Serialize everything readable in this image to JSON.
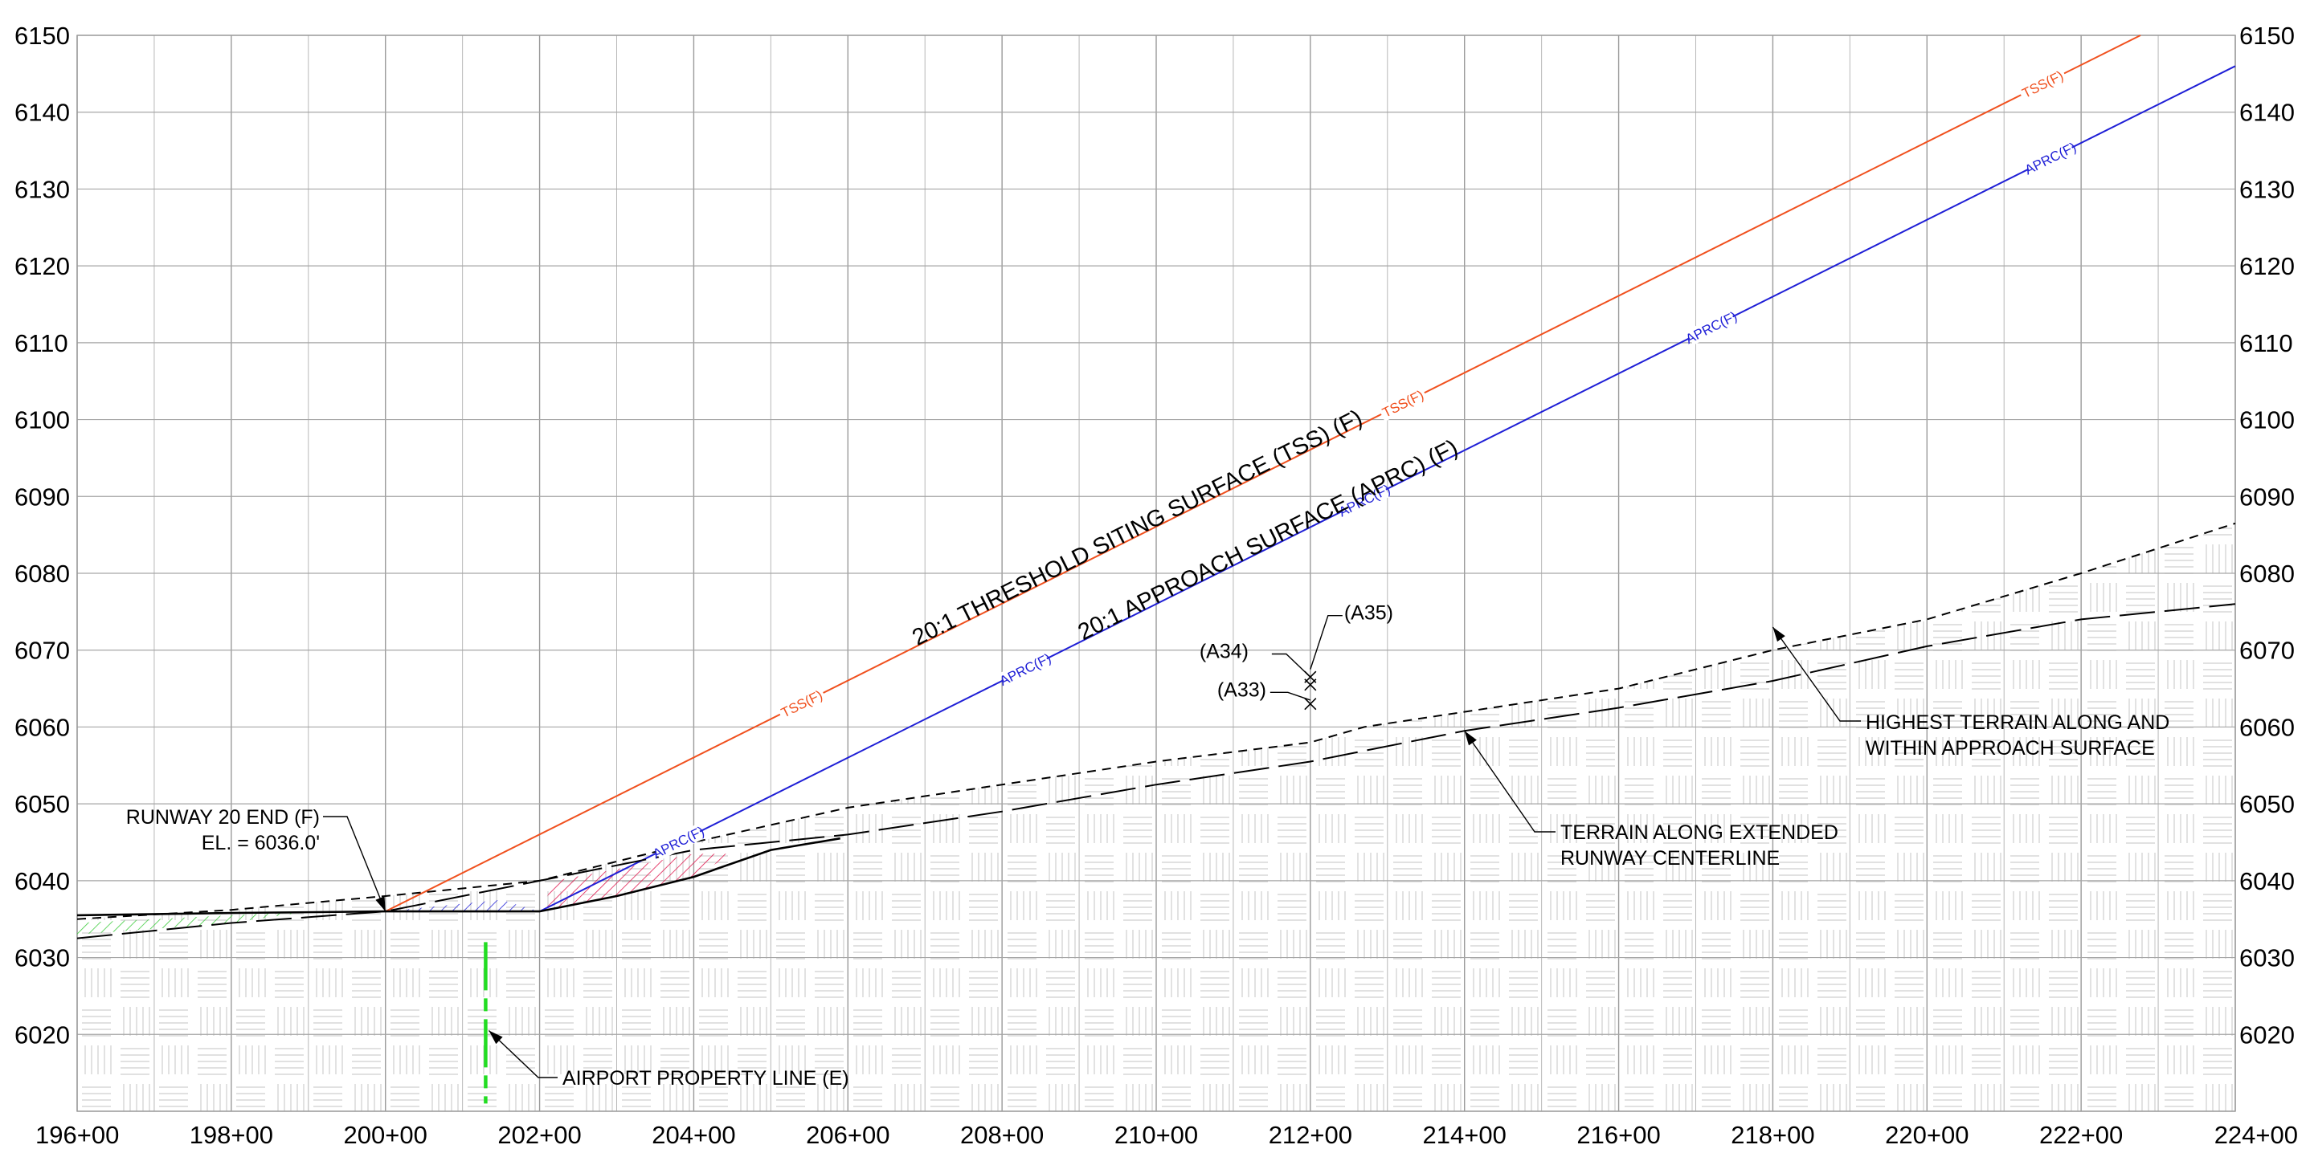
{
  "chart_data": {
    "type": "profile",
    "x_axis": {
      "unit": "station",
      "range": [
        19600,
        22400
      ],
      "ticks": [
        {
          "value": 19600,
          "label": "196+00"
        },
        {
          "value": 19800,
          "label": "198+00"
        },
        {
          "value": 20000,
          "label": "200+00"
        },
        {
          "value": 20200,
          "label": "202+00"
        },
        {
          "value": 20400,
          "label": "204+00"
        },
        {
          "value": 20600,
          "label": "206+00"
        },
        {
          "value": 20800,
          "label": "208+00"
        },
        {
          "value": 21000,
          "label": "210+00"
        },
        {
          "value": 21200,
          "label": "212+00"
        },
        {
          "value": 21400,
          "label": "214+00"
        },
        {
          "value": 21600,
          "label": "216+00"
        },
        {
          "value": 21800,
          "label": "218+00"
        },
        {
          "value": 22000,
          "label": "220+00"
        },
        {
          "value": 22200,
          "label": "222+00"
        },
        {
          "value": 22400,
          "label": "224+00"
        }
      ]
    },
    "y_axis": {
      "unit": "elevation ft",
      "range": [
        6010,
        6150
      ],
      "ticks": [
        {
          "value": 6020,
          "label": "6020"
        },
        {
          "value": 6030,
          "label": "6030"
        },
        {
          "value": 6040,
          "label": "6040"
        },
        {
          "value": 6050,
          "label": "6050"
        },
        {
          "value": 6060,
          "label": "6060"
        },
        {
          "value": 6070,
          "label": "6070"
        },
        {
          "value": 6080,
          "label": "6080"
        },
        {
          "value": 6090,
          "label": "6090"
        },
        {
          "value": 6100,
          "label": "6100"
        },
        {
          "value": 6110,
          "label": "6110"
        },
        {
          "value": 6120,
          "label": "6120"
        },
        {
          "value": 6130,
          "label": "6130"
        },
        {
          "value": 6140,
          "label": "6140"
        },
        {
          "value": 6150,
          "label": "6150"
        }
      ]
    },
    "grid": true,
    "series": [
      {
        "key": "tss",
        "name": "20:1 THRESHOLD SITING SURFACE  (TSS) (F)",
        "tag": "TSS(F)",
        "color": "#f0501e",
        "style": "solid",
        "points": [
          [
            20000,
            6036.0
          ],
          [
            22277,
            6150.0
          ]
        ],
        "tag_stations": [
          20540,
          21320,
          22150
        ]
      },
      {
        "key": "aprc",
        "name": "20:1 APPROACH SURFACE  (APRC) (F)",
        "tag": "APRC(F)",
        "color": "#1f1fd6",
        "style": "solid",
        "points": [
          [
            20200,
            6036.0
          ],
          [
            22400,
            6146.0
          ]
        ],
        "tag_stations": [
          20380,
          20830,
          21270,
          21720,
          22160
        ]
      },
      {
        "key": "highest-terrain",
        "name": "HIGHEST TERRAIN ALONG AND WITHIN APPROACH SURFACE",
        "color": "#000000",
        "style": "short-dash",
        "points": [
          [
            19600,
            6035.0
          ],
          [
            19800,
            6036.2
          ],
          [
            20000,
            6038.0
          ],
          [
            20200,
            6040.0
          ],
          [
            20400,
            6045.0
          ],
          [
            20600,
            6049.5
          ],
          [
            20800,
            6052.5
          ],
          [
            21000,
            6055.5
          ],
          [
            21200,
            6058.0
          ],
          [
            21270,
            6060.0
          ],
          [
            21600,
            6065.0
          ],
          [
            21800,
            6070.0
          ],
          [
            22000,
            6074.0
          ],
          [
            22200,
            6080.0
          ],
          [
            22400,
            6086.5
          ]
        ]
      },
      {
        "key": "centerline-terrain",
        "name": "TERRAIN ALONG EXTENDED RUNWAY CENTERLINE",
        "color": "#000000",
        "style": "long-dash",
        "points": [
          [
            19600,
            6032.5
          ],
          [
            19800,
            6034.5
          ],
          [
            20000,
            6036.0
          ],
          [
            20200,
            6040.0
          ],
          [
            20400,
            6044.0
          ],
          [
            20600,
            6046.0
          ],
          [
            20800,
            6049.0
          ],
          [
            21000,
            6052.5
          ],
          [
            21200,
            6055.5
          ],
          [
            21400,
            6059.5
          ],
          [
            21600,
            6062.5
          ],
          [
            21800,
            6066.0
          ],
          [
            22000,
            6070.5
          ],
          [
            22200,
            6074.0
          ],
          [
            22400,
            6076.0
          ]
        ]
      },
      {
        "key": "runway-grade",
        "name": "",
        "color": "#000000",
        "style": "solid",
        "points": [
          [
            19600,
            6035.5
          ],
          [
            19800,
            6035.8
          ],
          [
            20000,
            6036.0
          ],
          [
            20200,
            6036.0
          ],
          [
            20300,
            6038.0
          ],
          [
            20400,
            6040.5
          ],
          [
            20500,
            6044.0
          ],
          [
            20590,
            6045.5
          ]
        ]
      }
    ],
    "hatched_areas": [
      {
        "key": "red-hatch",
        "color": "#e0194f",
        "points": [
          [
            20200,
            6036.0
          ],
          [
            20220,
            6040.0
          ],
          [
            20300,
            6041.5
          ],
          [
            20400,
            6043.5
          ],
          [
            20450,
            6043.5
          ],
          [
            20400,
            6040.5
          ],
          [
            20300,
            6038.0
          ],
          [
            20200,
            6036.0
          ]
        ]
      },
      {
        "key": "blue-hatch",
        "color": "#2a2ad8",
        "points": [
          [
            20000,
            6036.0
          ],
          [
            20200,
            6036.0
          ],
          [
            20150,
            6037.5
          ],
          [
            20000,
            6036.0
          ]
        ]
      },
      {
        "key": "green-hatch",
        "color": "#3ecc3e",
        "points": [
          [
            19600,
            6034.5
          ],
          [
            19800,
            6035.5
          ],
          [
            19900,
            6036.0
          ],
          [
            19800,
            6034.5
          ],
          [
            19600,
            6033.0
          ]
        ]
      }
    ],
    "obstructions": [
      {
        "label": "(A33)",
        "station": 21200,
        "elevation": 6063.0
      },
      {
        "label": "(A34)",
        "station": 21200,
        "elevation": 6065.5
      },
      {
        "label": "(A35)",
        "station": 21200,
        "elevation": 6066.5
      }
    ],
    "property_line": {
      "label": "AIRPORT PROPERTY LINE (E)",
      "station": 20130,
      "from": 6011,
      "to": 6032,
      "color": "#22dd22"
    },
    "callouts": [
      {
        "key": "runway-end",
        "lines": [
          "RUNWAY 20 END (F)",
          "EL. = 6036.0'"
        ]
      },
      {
        "key": "centerline",
        "lines": [
          "TERRAIN ALONG EXTENDED",
          "RUNWAY CENTERLINE"
        ]
      },
      {
        "key": "highest",
        "lines": [
          "HIGHEST TERRAIN ALONG AND",
          "WITHIN APPROACH SURFACE"
        ]
      },
      {
        "key": "property",
        "lines": [
          "AIRPORT PROPERTY LINE (E)"
        ]
      }
    ]
  }
}
